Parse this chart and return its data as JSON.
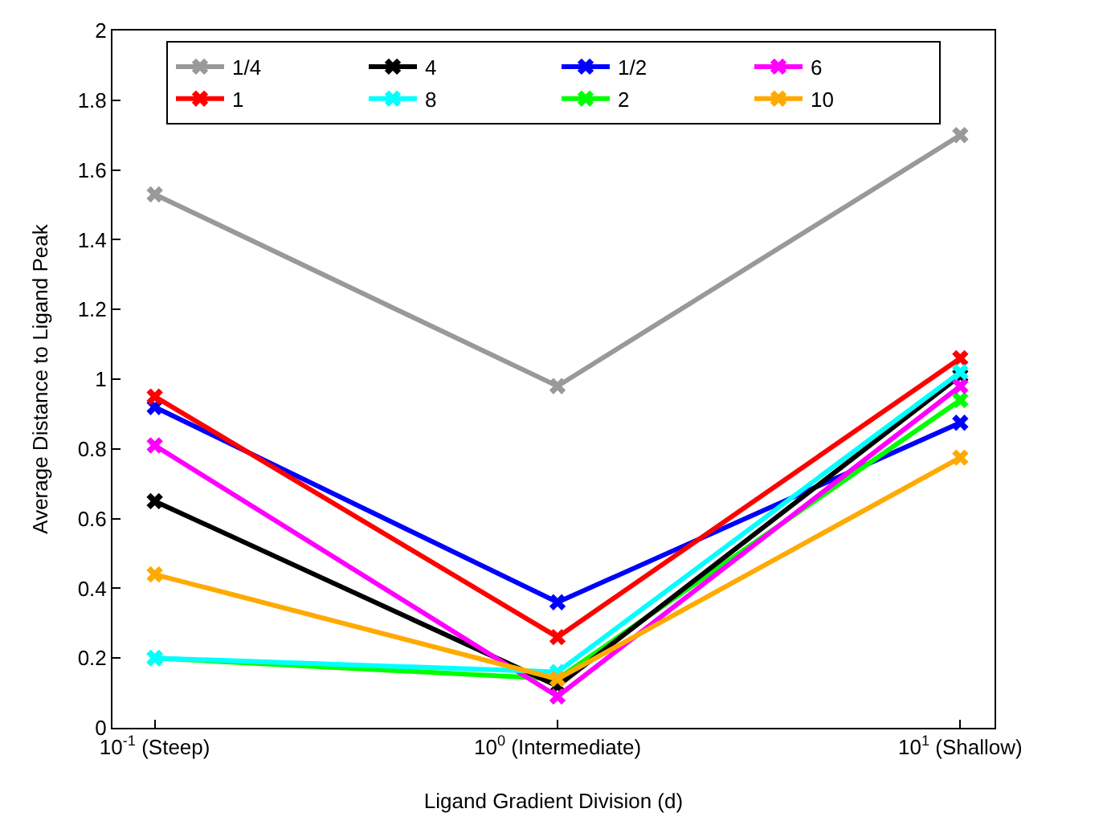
{
  "chart_data": {
    "type": "line",
    "xlabel": "Ligand Gradient Division (d)",
    "ylabel": "Average Distance to Ligand Peak",
    "categories": [
      "10$^{-1}$ (Steep)",
      "10$^{0}$ (Intermediate)",
      "10$^{1}$ (Shallow)"
    ],
    "marker": "cross",
    "line_style": "solid",
    "legend": "top",
    "ylim": [
      0,
      2
    ],
    "yticks": [
      0,
      0.2,
      0.4,
      0.6,
      0.8,
      1,
      1.2,
      1.4,
      1.6,
      1.8,
      2
    ],
    "series": [
      {
        "name": "1/4",
        "color": "#999999",
        "values": [
          1.53,
          0.98,
          1.7
        ]
      },
      {
        "name": "1/2",
        "color": "#0000ff",
        "values": [
          0.92,
          0.36,
          0.875
        ]
      },
      {
        "name": "1",
        "color": "#ff0000",
        "values": [
          0.95,
          0.26,
          1.06
        ]
      },
      {
        "name": "2",
        "color": "#00ff00",
        "values": [
          0.2,
          0.14,
          0.94
        ]
      },
      {
        "name": "4",
        "color": "#000000",
        "values": [
          0.65,
          0.12,
          1.01
        ]
      },
      {
        "name": "6",
        "color": "#ff00ff",
        "values": [
          0.81,
          0.09,
          0.98
        ]
      },
      {
        "name": "8",
        "color": "#00ffff",
        "values": [
          0.2,
          0.16,
          1.02
        ]
      },
      {
        "name": "10",
        "color": "#ffaa00",
        "values": [
          0.44,
          0.14,
          0.775
        ]
      }
    ]
  }
}
